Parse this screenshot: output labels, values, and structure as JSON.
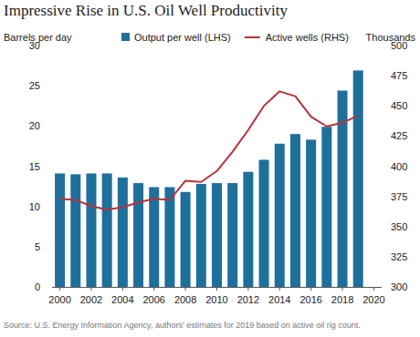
{
  "chart_data": {
    "type": "bar",
    "title": "Impressive Rise in U.S. Oil Well Productivity",
    "y_label": "Barrels per day",
    "y2_label": "Thousands",
    "source": "Source: U.S. Energy Information Agency, authors' estimates for 2019 based on active oil rig count.",
    "x": [
      2000,
      2001,
      2002,
      2003,
      2004,
      2005,
      2006,
      2007,
      2008,
      2009,
      2010,
      2011,
      2012,
      2013,
      2014,
      2015,
      2016,
      2017,
      2018,
      2019
    ],
    "series": [
      {
        "name": "Output per well (LHS)",
        "type": "bar",
        "color": "#1f6f9c",
        "values": [
          14.1,
          14.0,
          14.1,
          14.1,
          13.6,
          12.9,
          12.4,
          12.4,
          11.8,
          12.8,
          12.9,
          12.9,
          14.3,
          15.8,
          17.8,
          19.0,
          18.3,
          19.9,
          24.4,
          26.9
        ]
      },
      {
        "name": "Active wells (RHS)",
        "type": "line",
        "color": "#b5343a",
        "axis": "y2",
        "values": [
          373,
          372,
          367,
          364,
          366,
          370,
          373,
          372,
          388,
          387,
          396,
          412,
          430,
          450,
          462,
          458,
          441,
          433,
          436,
          442
        ]
      }
    ],
    "xlim": [
      1999.5,
      2020.5
    ],
    "xticks": [
      2000,
      2002,
      2004,
      2006,
      2008,
      2010,
      2012,
      2014,
      2016,
      2018,
      2020
    ],
    "ylim": [
      0,
      30
    ],
    "yticks": [
      0,
      5,
      10,
      15,
      20,
      25,
      30
    ],
    "y2lim": [
      300,
      500
    ],
    "y2ticks": [
      300,
      325,
      350,
      375,
      400,
      425,
      450,
      475,
      500
    ],
    "grid": false,
    "legend": "top"
  }
}
